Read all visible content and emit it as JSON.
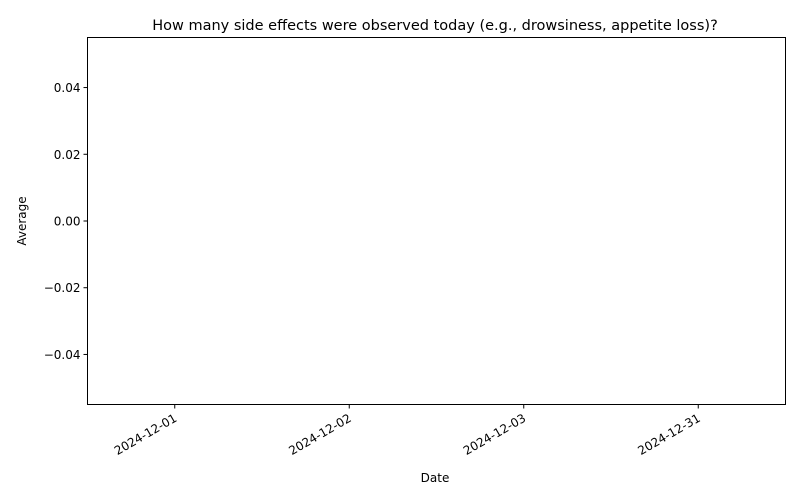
{
  "chart_data": {
    "type": "bar",
    "title": "How many side effects were observed today (e.g., drowsiness, appetite loss)?",
    "xlabel": "Date",
    "ylabel": "Average",
    "categories": [
      "2024-12-01",
      "2024-12-02",
      "2024-12-03",
      "2024-12-31"
    ],
    "values": [
      0,
      0,
      0,
      0
    ],
    "ylim": [
      -0.055,
      0.055
    ],
    "yticks": [
      -0.04,
      -0.02,
      0.0,
      0.02,
      0.04
    ],
    "ytick_labels": [
      "−0.04",
      "−0.02",
      "0.00",
      "0.02",
      "0.04"
    ],
    "grid": false,
    "colors": {
      "bar": "#1f77b4",
      "axis": "#000000"
    }
  }
}
